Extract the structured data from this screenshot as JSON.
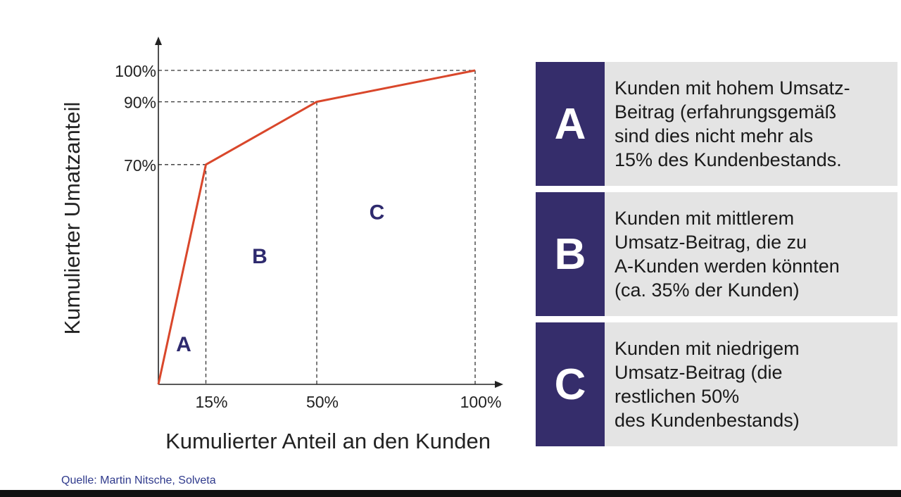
{
  "chart_data": {
    "type": "line",
    "title": "",
    "xlabel": "Kumulierter Anteil an den Kunden",
    "ylabel": "Kumulierter Umatzanteil",
    "xlim": [
      0,
      100
    ],
    "ylim": [
      0,
      100
    ],
    "x_ticks": [
      "15%",
      "50%",
      "100%"
    ],
    "y_ticks": [
      "70%",
      "90%",
      "100%"
    ],
    "series": [
      {
        "x": [
          0,
          15,
          50,
          100
        ],
        "y": [
          0,
          70,
          90,
          100
        ]
      }
    ],
    "region_labels": [
      {
        "label": "A",
        "x": 8,
        "y": 13
      },
      {
        "label": "B",
        "x": 32,
        "y": 41
      },
      {
        "label": "C",
        "x": 69,
        "y": 55
      }
    ],
    "grid": false,
    "line_color": "#d9472b"
  },
  "legend": [
    {
      "letter": "A",
      "text": "Kunden mit hohem Umsatz-\nBeitrag (erfahrungsgemäß\nsind dies nicht mehr als\n15% des Kundenbestands."
    },
    {
      "letter": "B",
      "text": "Kunden mit mittlerem\nUmsatz-Beitrag, die zu\nA-Kunden werden könnten\n(ca. 35% der Kunden)"
    },
    {
      "letter": "C",
      "text": "Kunden mit niedrigem\nUmsatz-Beitrag (die\nrestlichen 50%\ndes Kundenbestands)"
    }
  ],
  "colors": {
    "legend_dark": "#352d6b",
    "legend_light": "#e4e4e4",
    "region_label": "#2e2a6e",
    "source_text": "#2f3a8c"
  },
  "source": "Quelle: Martin Nitsche, Solveta"
}
